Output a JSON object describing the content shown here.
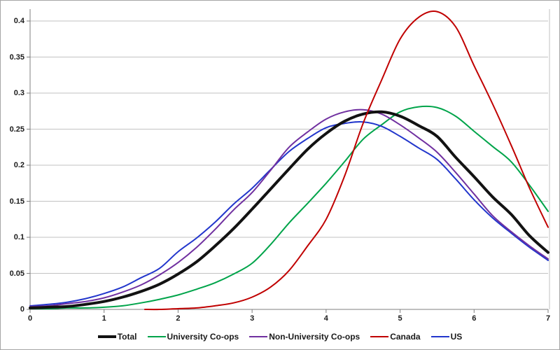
{
  "chart_data": {
    "type": "line",
    "title": "",
    "xlabel": "",
    "ylabel": "",
    "xlim": [
      0,
      7
    ],
    "ylim": [
      0,
      0.42
    ],
    "grid": "horizontal-only",
    "legend_position": "bottom-center",
    "y_tick_step": 0.05,
    "y_tick_labels": [
      "0",
      "0.05",
      "0.1",
      "0.15",
      "0.2",
      "0.25",
      "0.3",
      "0.35",
      "0.4"
    ],
    "x_tick_labels": [
      "0",
      "1",
      "2",
      "3",
      "4",
      "5",
      "6",
      "7"
    ],
    "series": [
      {
        "name": "Total",
        "color": "#121212",
        "line_width": 4,
        "x": [
          0,
          0.25,
          0.5,
          0.75,
          1,
          1.25,
          1.5,
          1.75,
          2,
          2.25,
          2.5,
          2.75,
          3,
          3.25,
          3.5,
          3.75,
          4,
          4.25,
          4.5,
          4.75,
          5,
          5.25,
          5.5,
          5.75,
          6,
          6.25,
          6.5,
          6.75,
          7
        ],
        "y": [
          0.002,
          0.003,
          0.004,
          0.007,
          0.011,
          0.017,
          0.025,
          0.035,
          0.049,
          0.066,
          0.088,
          0.112,
          0.139,
          0.167,
          0.195,
          0.222,
          0.244,
          0.261,
          0.271,
          0.274,
          0.268,
          0.255,
          0.24,
          0.211,
          0.184,
          0.156,
          0.132,
          0.102,
          0.079
        ]
      },
      {
        "name": "University Co-ops",
        "color": "#00a44a",
        "line_width": 2,
        "x": [
          0,
          0.25,
          0.5,
          0.75,
          1,
          1.25,
          1.5,
          1.75,
          2,
          2.25,
          2.5,
          2.75,
          3,
          3.25,
          3.5,
          3.75,
          4,
          4.25,
          4.5,
          4.75,
          5,
          5.25,
          5.5,
          5.75,
          6,
          6.25,
          6.5,
          6.75,
          7
        ],
        "y": [
          0.001,
          0.001,
          0.002,
          0.002,
          0.003,
          0.005,
          0.009,
          0.014,
          0.02,
          0.028,
          0.037,
          0.049,
          0.064,
          0.09,
          0.12,
          0.147,
          0.175,
          0.205,
          0.236,
          0.256,
          0.274,
          0.281,
          0.28,
          0.268,
          0.247,
          0.226,
          0.205,
          0.172,
          0.136
        ]
      },
      {
        "name": "Non-University Co-ops",
        "color": "#7030a0",
        "line_width": 2,
        "x": [
          0,
          0.25,
          0.5,
          0.75,
          1,
          1.25,
          1.5,
          1.75,
          2,
          2.25,
          2.5,
          2.75,
          3,
          3.25,
          3.5,
          3.75,
          4,
          4.25,
          4.5,
          4.75,
          5,
          5.25,
          5.5,
          5.75,
          6,
          6.25,
          6.5,
          6.75,
          7
        ],
        "y": [
          0.004,
          0.005,
          0.008,
          0.011,
          0.016,
          0.024,
          0.034,
          0.048,
          0.065,
          0.086,
          0.111,
          0.138,
          0.162,
          0.193,
          0.225,
          0.246,
          0.264,
          0.274,
          0.277,
          0.271,
          0.256,
          0.238,
          0.218,
          0.19,
          0.16,
          0.13,
          0.108,
          0.088,
          0.07
        ]
      },
      {
        "name": "Canada",
        "color": "#c00000",
        "line_width": 2,
        "x": [
          1.55,
          1.75,
          2,
          2.25,
          2.5,
          2.75,
          3,
          3.25,
          3.5,
          3.75,
          4,
          4.25,
          4.5,
          4.75,
          5,
          5.25,
          5.5,
          5.75,
          6,
          6.25,
          6.5,
          6.75,
          7
        ],
        "y": [
          0.0,
          0.0,
          0.001,
          0.002,
          0.005,
          0.009,
          0.017,
          0.031,
          0.054,
          0.088,
          0.125,
          0.185,
          0.258,
          0.318,
          0.375,
          0.405,
          0.413,
          0.392,
          0.338,
          0.285,
          0.228,
          0.168,
          0.114
        ]
      },
      {
        "name": "US",
        "color": "#2236cc",
        "line_width": 2,
        "x": [
          0,
          0.25,
          0.5,
          0.75,
          1,
          1.25,
          1.5,
          1.75,
          2,
          2.25,
          2.5,
          2.75,
          3,
          3.25,
          3.5,
          3.75,
          4,
          4.25,
          4.5,
          4.75,
          5,
          5.25,
          5.5,
          5.75,
          6,
          6.25,
          6.5,
          6.75,
          7
        ],
        "y": [
          0.005,
          0.007,
          0.01,
          0.015,
          0.022,
          0.031,
          0.044,
          0.057,
          0.08,
          0.099,
          0.121,
          0.146,
          0.168,
          0.194,
          0.219,
          0.237,
          0.252,
          0.258,
          0.26,
          0.254,
          0.24,
          0.224,
          0.208,
          0.181,
          0.152,
          0.127,
          0.106,
          0.086,
          0.068
        ]
      }
    ]
  },
  "style": {
    "background": "#ffffff",
    "outer_border": "#a6a6a6",
    "gridline_color": "#c2c2c2",
    "axis_color": "#7f7f7f",
    "label_color": "#1a1a1a"
  }
}
